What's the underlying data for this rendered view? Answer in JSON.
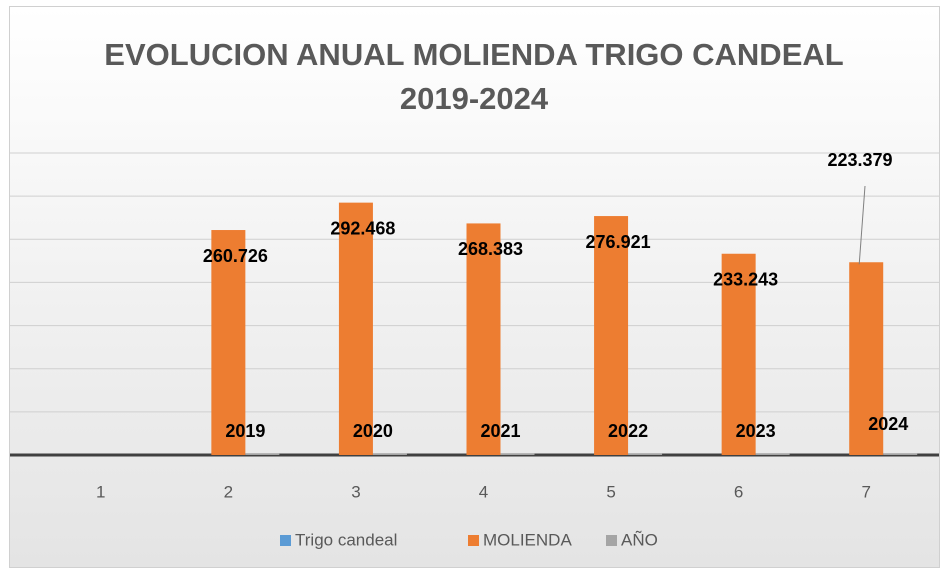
{
  "chart_data": {
    "type": "bar",
    "title": "EVOLUCION ANUAL MOLIENDA TRIGO CANDEAL 2019-2024",
    "categories": [
      "1",
      "2",
      "3",
      "4",
      "5",
      "6",
      "7"
    ],
    "series": [
      {
        "name": "Trigo candeal",
        "color": "#5b9bd5",
        "values": [
          null,
          null,
          null,
          null,
          null,
          null,
          null
        ]
      },
      {
        "name": "MOLIENDA",
        "color": "#ed7d31",
        "values": [
          null,
          260726,
          292468,
          268383,
          276921,
          233243,
          223379
        ],
        "value_labels": [
          null,
          "260.726",
          "292.468",
          "268.383",
          "276.921",
          "233.243",
          "223.379"
        ]
      },
      {
        "name": "AÑO",
        "color": "#a5a5a5",
        "values": [
          null,
          2019,
          2020,
          2021,
          2022,
          2023,
          2024
        ]
      }
    ],
    "ylim": [
      0,
      350000
    ],
    "yticks": [
      0,
      50000,
      100000,
      150000,
      200000,
      250000,
      300000,
      350000
    ],
    "grid": true,
    "legend": "bottom"
  }
}
